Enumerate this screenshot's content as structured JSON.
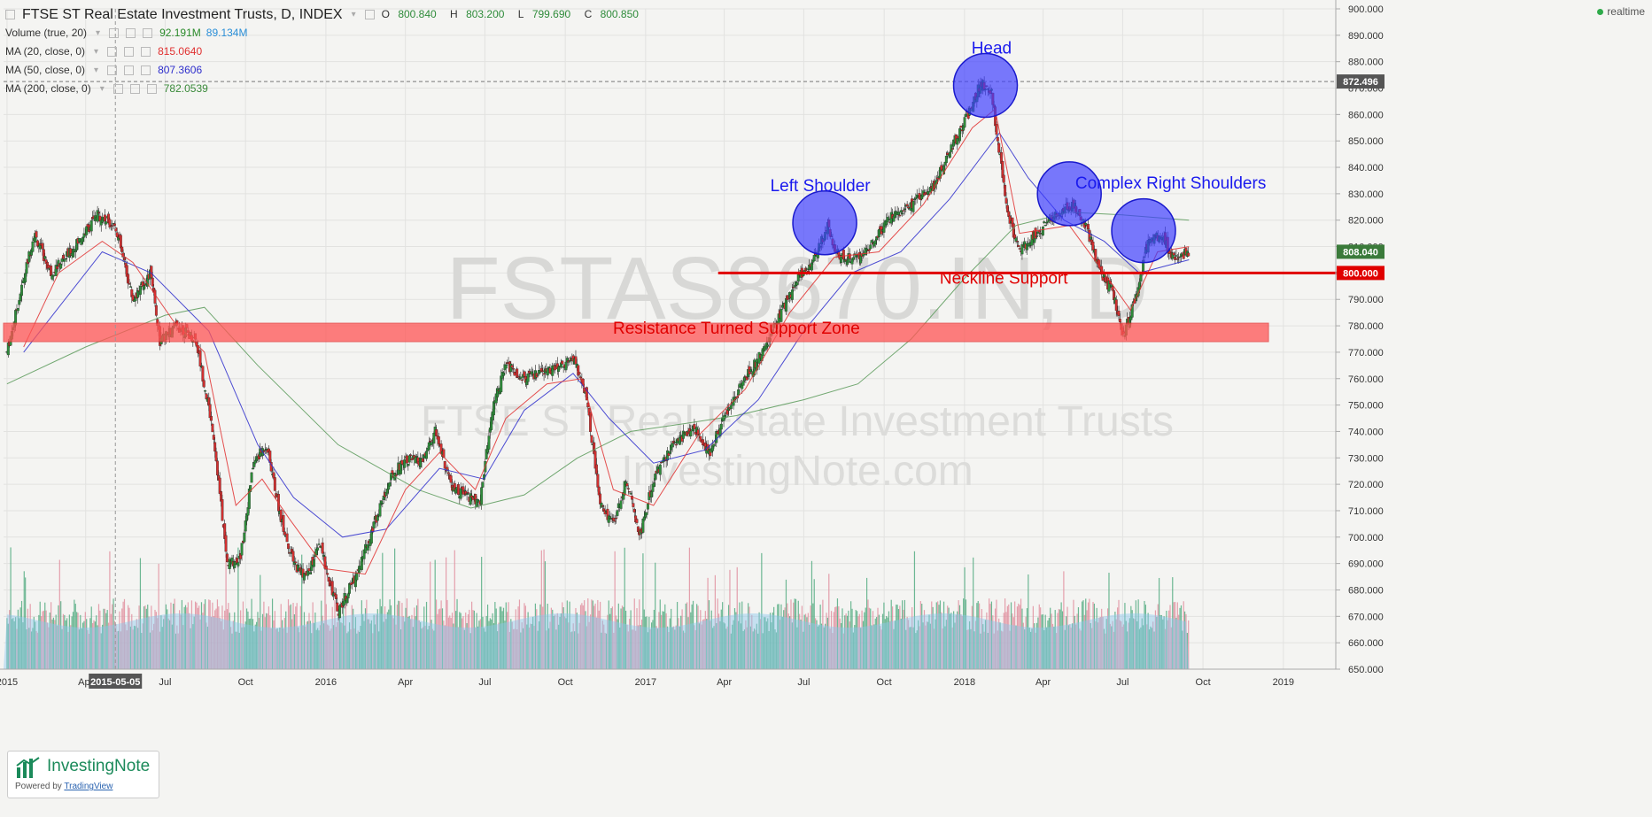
{
  "header": {
    "title": "FTSE ST Real Estate Investment Trusts, D, INDEX",
    "ohlc": {
      "o_label": "O",
      "o": "800.840",
      "h_label": "H",
      "h": "803.200",
      "l_label": "L",
      "l": "799.690",
      "c_label": "C",
      "c": "800.850"
    },
    "indicators": [
      {
        "label": "Volume (true, 20)",
        "value": "92.191M",
        "value2": "89.134M",
        "color": "#2a8a2a",
        "color2": "#2a8fd8"
      },
      {
        "label": "MA (20, close, 0)",
        "value": "815.0640",
        "color": "#e03030"
      },
      {
        "label": "MA (50, close, 0)",
        "value": "807.3606",
        "color": "#2d2dcc"
      },
      {
        "label": "MA (200, close, 0)",
        "value": "782.0539",
        "color": "#3a8a3a"
      }
    ],
    "realtime": "realtime"
  },
  "watermark": {
    "line1": "FSTAS8670.IN, D",
    "line2": "FTSE ST Real Estate Investment Trusts",
    "line3": "InvestingNote.com"
  },
  "logo": {
    "brand": "InvestingNote",
    "powered_prefix": "Powered by ",
    "powered_link": "TradingView"
  },
  "colors": {
    "up": "#2e8b3a",
    "down": "#d03030",
    "ma20": "#e03030",
    "ma50": "#2d2dcc",
    "ma200": "#5a9a5a",
    "annotation": "#1a1aee",
    "support": "#e00000"
  },
  "chart_data": {
    "type": "line",
    "title": "FTSE ST Real Estate Investment Trusts, D, INDEX",
    "y_axis": {
      "min": 650,
      "max": 900,
      "ticks": [
        "900.000",
        "890.000",
        "880.000",
        "870.000",
        "860.000",
        "850.000",
        "840.000",
        "830.000",
        "820.000",
        "810.000",
        "800.000",
        "790.000",
        "780.000",
        "770.000",
        "760.000",
        "750.000",
        "740.000",
        "730.000",
        "720.000",
        "710.000",
        "700.000",
        "690.000",
        "680.000",
        "670.000",
        "660.000",
        "650.000"
      ]
    },
    "x_axis": {
      "ticks": [
        {
          "label": "2015",
          "d": "2015-01-01"
        },
        {
          "label": "Apr",
          "d": "2015-04-01"
        },
        {
          "label": "Jul",
          "d": "2015-07-01"
        },
        {
          "label": "Oct",
          "d": "2015-10-01"
        },
        {
          "label": "2016",
          "d": "2016-01-01"
        },
        {
          "label": "Apr",
          "d": "2016-04-01"
        },
        {
          "label": "Jul",
          "d": "2016-07-01"
        },
        {
          "label": "Oct",
          "d": "2016-10-01"
        },
        {
          "label": "2017",
          "d": "2017-01-01"
        },
        {
          "label": "Apr",
          "d": "2017-04-01"
        },
        {
          "label": "Jul",
          "d": "2017-07-01"
        },
        {
          "label": "Oct",
          "d": "2017-10-01"
        },
        {
          "label": "2018",
          "d": "2018-01-01"
        },
        {
          "label": "Apr",
          "d": "2018-04-01"
        },
        {
          "label": "Jul",
          "d": "2018-07-01"
        },
        {
          "label": "Oct",
          "d": "2018-10-01"
        },
        {
          "label": "2019",
          "d": "2019-01-01"
        }
      ],
      "crosshair_date": "2015-05-05",
      "crosshair_label": "2015-05-05"
    },
    "price_series": [
      {
        "d": "2015-01-01",
        "v": 770
      },
      {
        "d": "2015-02-01",
        "v": 815
      },
      {
        "d": "2015-02-20",
        "v": 800
      },
      {
        "d": "2015-03-15",
        "v": 808
      },
      {
        "d": "2015-04-15",
        "v": 822
      },
      {
        "d": "2015-05-05",
        "v": 818
      },
      {
        "d": "2015-05-25",
        "v": 790
      },
      {
        "d": "2015-06-15",
        "v": 800
      },
      {
        "d": "2015-06-25",
        "v": 774
      },
      {
        "d": "2015-07-15",
        "v": 780
      },
      {
        "d": "2015-08-05",
        "v": 775
      },
      {
        "d": "2015-08-25",
        "v": 740
      },
      {
        "d": "2015-09-10",
        "v": 690
      },
      {
        "d": "2015-09-25",
        "v": 692
      },
      {
        "d": "2015-10-10",
        "v": 728
      },
      {
        "d": "2015-10-25",
        "v": 735
      },
      {
        "d": "2015-11-10",
        "v": 708
      },
      {
        "d": "2015-11-25",
        "v": 690
      },
      {
        "d": "2015-12-10",
        "v": 685
      },
      {
        "d": "2015-12-25",
        "v": 697
      },
      {
        "d": "2016-01-15",
        "v": 672
      },
      {
        "d": "2016-02-05",
        "v": 686
      },
      {
        "d": "2016-02-25",
        "v": 705
      },
      {
        "d": "2016-03-15",
        "v": 722
      },
      {
        "d": "2016-04-01",
        "v": 730
      },
      {
        "d": "2016-04-20",
        "v": 728
      },
      {
        "d": "2016-05-05",
        "v": 740
      },
      {
        "d": "2016-05-25",
        "v": 718
      },
      {
        "d": "2016-06-15",
        "v": 715
      },
      {
        "d": "2016-06-25",
        "v": 712
      },
      {
        "d": "2016-07-10",
        "v": 750
      },
      {
        "d": "2016-07-25",
        "v": 765
      },
      {
        "d": "2016-08-15",
        "v": 760
      },
      {
        "d": "2016-09-05",
        "v": 762
      },
      {
        "d": "2016-09-25",
        "v": 765
      },
      {
        "d": "2016-10-10",
        "v": 768
      },
      {
        "d": "2016-10-25",
        "v": 754
      },
      {
        "d": "2016-11-10",
        "v": 712
      },
      {
        "d": "2016-11-25",
        "v": 705
      },
      {
        "d": "2016-12-10",
        "v": 722
      },
      {
        "d": "2016-12-25",
        "v": 700
      },
      {
        "d": "2017-01-10",
        "v": 722
      },
      {
        "d": "2017-02-01",
        "v": 735
      },
      {
        "d": "2017-02-25",
        "v": 742
      },
      {
        "d": "2017-03-15",
        "v": 732
      },
      {
        "d": "2017-04-05",
        "v": 748
      },
      {
        "d": "2017-04-25",
        "v": 760
      },
      {
        "d": "2017-05-15",
        "v": 770
      },
      {
        "d": "2017-06-05",
        "v": 785
      },
      {
        "d": "2017-06-25",
        "v": 798
      },
      {
        "d": "2017-07-15",
        "v": 806
      },
      {
        "d": "2017-07-28",
        "v": 818
      },
      {
        "d": "2017-08-10",
        "v": 806
      },
      {
        "d": "2017-08-30",
        "v": 806
      },
      {
        "d": "2017-09-20",
        "v": 812
      },
      {
        "d": "2017-10-10",
        "v": 822
      },
      {
        "d": "2017-11-01",
        "v": 826
      },
      {
        "d": "2017-11-25",
        "v": 832
      },
      {
        "d": "2017-12-15",
        "v": 846
      },
      {
        "d": "2018-01-05",
        "v": 860
      },
      {
        "d": "2018-01-20",
        "v": 872
      },
      {
        "d": "2018-02-01",
        "v": 868
      },
      {
        "d": "2018-02-10",
        "v": 845
      },
      {
        "d": "2018-02-20",
        "v": 822
      },
      {
        "d": "2018-03-05",
        "v": 808
      },
      {
        "d": "2018-03-25",
        "v": 815
      },
      {
        "d": "2018-04-15",
        "v": 822
      },
      {
        "d": "2018-05-05",
        "v": 826
      },
      {
        "d": "2018-05-20",
        "v": 818
      },
      {
        "d": "2018-06-05",
        "v": 800
      },
      {
        "d": "2018-06-20",
        "v": 793
      },
      {
        "d": "2018-07-02",
        "v": 776
      },
      {
        "d": "2018-07-15",
        "v": 790
      },
      {
        "d": "2018-07-30",
        "v": 812
      },
      {
        "d": "2018-08-15",
        "v": 815
      },
      {
        "d": "2018-08-28",
        "v": 805
      },
      {
        "d": "2018-09-15",
        "v": 808
      }
    ],
    "ma20": [
      {
        "d": "2015-01-20",
        "v": 772
      },
      {
        "d": "2015-03-01",
        "v": 800
      },
      {
        "d": "2015-04-20",
        "v": 812
      },
      {
        "d": "2015-05-25",
        "v": 804
      },
      {
        "d": "2015-07-10",
        "v": 782
      },
      {
        "d": "2015-08-15",
        "v": 770
      },
      {
        "d": "2015-09-20",
        "v": 712
      },
      {
        "d": "2015-10-20",
        "v": 722
      },
      {
        "d": "2015-11-20",
        "v": 707
      },
      {
        "d": "2016-01-01",
        "v": 688
      },
      {
        "d": "2016-02-15",
        "v": 686
      },
      {
        "d": "2016-04-01",
        "v": 718
      },
      {
        "d": "2016-05-10",
        "v": 732
      },
      {
        "d": "2016-06-20",
        "v": 718
      },
      {
        "d": "2016-07-25",
        "v": 745
      },
      {
        "d": "2016-09-10",
        "v": 758
      },
      {
        "d": "2016-10-20",
        "v": 760
      },
      {
        "d": "2016-11-25",
        "v": 718
      },
      {
        "d": "2017-01-10",
        "v": 712
      },
      {
        "d": "2017-03-01",
        "v": 738
      },
      {
        "d": "2017-04-25",
        "v": 756
      },
      {
        "d": "2017-06-15",
        "v": 785
      },
      {
        "d": "2017-08-05",
        "v": 806
      },
      {
        "d": "2017-09-25",
        "v": 808
      },
      {
        "d": "2017-11-15",
        "v": 826
      },
      {
        "d": "2018-01-10",
        "v": 855
      },
      {
        "d": "2018-02-05",
        "v": 862
      },
      {
        "d": "2018-03-05",
        "v": 815
      },
      {
        "d": "2018-05-01",
        "v": 818
      },
      {
        "d": "2018-06-10",
        "v": 800
      },
      {
        "d": "2018-07-10",
        "v": 786
      },
      {
        "d": "2018-08-10",
        "v": 808
      },
      {
        "d": "2018-09-15",
        "v": 810
      }
    ],
    "ma50": [
      {
        "d": "2015-01-20",
        "v": 770
      },
      {
        "d": "2015-04-20",
        "v": 808
      },
      {
        "d": "2015-06-15",
        "v": 800
      },
      {
        "d": "2015-08-20",
        "v": 778
      },
      {
        "d": "2015-10-15",
        "v": 735
      },
      {
        "d": "2015-11-25",
        "v": 715
      },
      {
        "d": "2016-01-20",
        "v": 700
      },
      {
        "d": "2016-03-10",
        "v": 703
      },
      {
        "d": "2016-05-10",
        "v": 726
      },
      {
        "d": "2016-06-30",
        "v": 722
      },
      {
        "d": "2016-08-15",
        "v": 748
      },
      {
        "d": "2016-10-10",
        "v": 762
      },
      {
        "d": "2016-11-20",
        "v": 745
      },
      {
        "d": "2017-01-10",
        "v": 728
      },
      {
        "d": "2017-03-10",
        "v": 733
      },
      {
        "d": "2017-05-10",
        "v": 752
      },
      {
        "d": "2017-07-01",
        "v": 778
      },
      {
        "d": "2017-08-25",
        "v": 800
      },
      {
        "d": "2017-10-20",
        "v": 808
      },
      {
        "d": "2017-12-15",
        "v": 828
      },
      {
        "d": "2018-02-10",
        "v": 853
      },
      {
        "d": "2018-03-15",
        "v": 836
      },
      {
        "d": "2018-04-25",
        "v": 820
      },
      {
        "d": "2018-06-10",
        "v": 812
      },
      {
        "d": "2018-07-20",
        "v": 800
      },
      {
        "d": "2018-09-15",
        "v": 805
      }
    ],
    "ma200": [
      {
        "d": "2015-01-01",
        "v": 758
      },
      {
        "d": "2015-04-01",
        "v": 772
      },
      {
        "d": "2015-07-01",
        "v": 784
      },
      {
        "d": "2015-08-15",
        "v": 787
      },
      {
        "d": "2015-10-15",
        "v": 765
      },
      {
        "d": "2016-01-15",
        "v": 735
      },
      {
        "d": "2016-04-15",
        "v": 718
      },
      {
        "d": "2016-06-15",
        "v": 711
      },
      {
        "d": "2016-08-15",
        "v": 716
      },
      {
        "d": "2016-10-15",
        "v": 730
      },
      {
        "d": "2016-12-15",
        "v": 740
      },
      {
        "d": "2017-02-15",
        "v": 743
      },
      {
        "d": "2017-04-15",
        "v": 746
      },
      {
        "d": "2017-07-01",
        "v": 752
      },
      {
        "d": "2017-09-01",
        "v": 758
      },
      {
        "d": "2017-11-01",
        "v": 775
      },
      {
        "d": "2018-01-01",
        "v": 798
      },
      {
        "d": "2018-03-01",
        "v": 818
      },
      {
        "d": "2018-05-01",
        "v": 823
      },
      {
        "d": "2018-07-01",
        "v": 822
      },
      {
        "d": "2018-09-15",
        "v": 820
      }
    ],
    "annotations": {
      "circles": [
        {
          "name": "left-shoulder-circle",
          "d": "2017-07-25",
          "v": 819,
          "r": 36
        },
        {
          "name": "head-circle",
          "d": "2018-01-25",
          "v": 871,
          "r": 36
        },
        {
          "name": "right-shoulder-circle-1",
          "d": "2018-05-01",
          "v": 830,
          "r": 36
        },
        {
          "name": "right-shoulder-circle-2",
          "d": "2018-07-25",
          "v": 816,
          "r": 36
        }
      ],
      "labels": [
        {
          "text": "Head",
          "d": "2018-02-01",
          "v": 883
        },
        {
          "text": "Left Shoulder",
          "d": "2017-07-20",
          "v": 831
        },
        {
          "text": "Complex Right Shoulders",
          "d": "2018-08-25",
          "v": 832
        },
        {
          "text": "Neckline Support",
          "d": "2018-02-15",
          "v": 796
        },
        {
          "text": "Resistance Turned Support Zone",
          "d": "2017-04-15",
          "v": 777
        }
      ],
      "neckline": {
        "d_start": "2017-03-25",
        "d_end": "2019-04-15",
        "v": 800
      },
      "zone": {
        "d_start": "2014-12-28",
        "d_end": "2018-12-15",
        "v_low": 774,
        "v_high": 781
      },
      "horizontal_dashed": 872.496
    },
    "price_badges": [
      {
        "text": "872.496",
        "v": 872.496,
        "bg": "#555555"
      },
      {
        "text": "808.040",
        "v": 808.04,
        "bg": "#3a7a3a"
      },
      {
        "text": "800.000",
        "v": 800,
        "bg": "#e00000"
      }
    ],
    "volume_scale_max": 100
  }
}
